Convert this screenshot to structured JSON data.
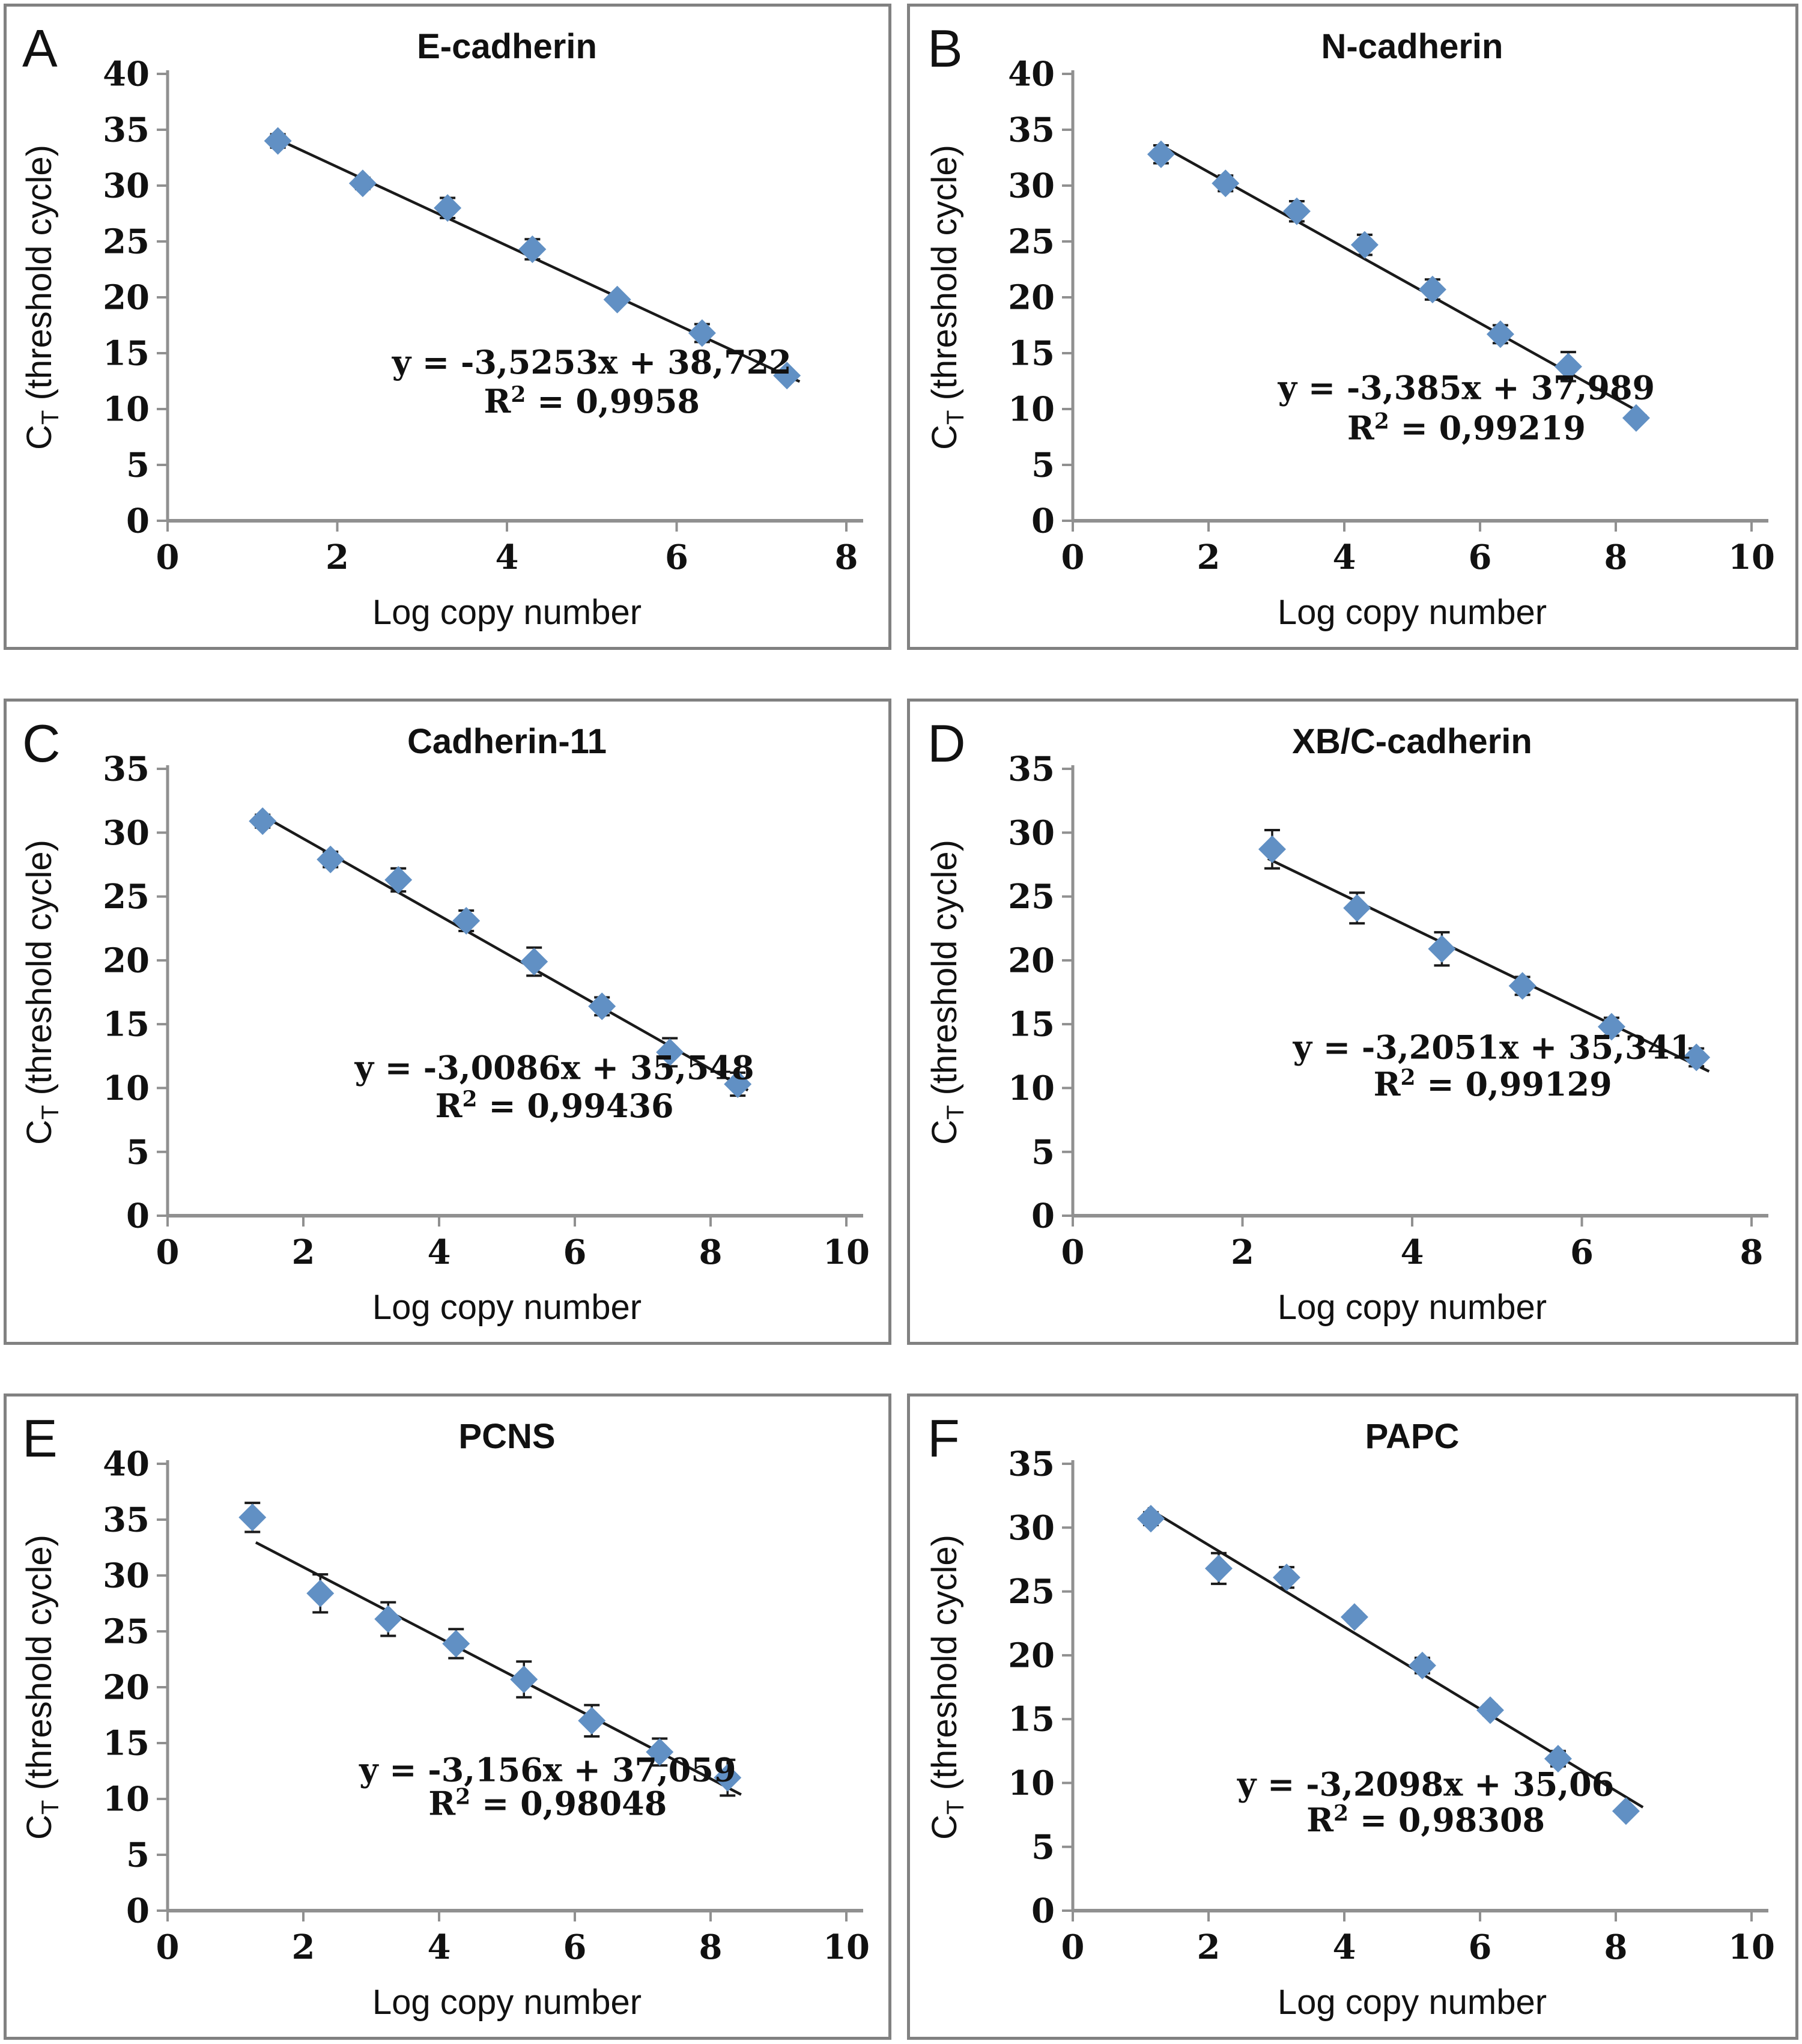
{
  "figure": {
    "description": "Six-panel qPCR standard curve figure",
    "panel_letters": [
      "A",
      "B",
      "C",
      "D",
      "E",
      "F"
    ]
  },
  "styles": {
    "marker_color": "#6190c4",
    "axis_color": "#909090",
    "text_color": "#111111",
    "trendline_color": "#1a1a1a",
    "errorbar_color": "#1a1a1a",
    "panel_border_color": "#818181",
    "background": "#ffffff"
  },
  "chart_data": [
    {
      "type": "scatter",
      "panel_letter": "A",
      "title": "E-cadherin",
      "xlabel": "Log copy number",
      "ylabel": {
        "base": "C",
        "sub": "T",
        "rest": " (threshold cycle)"
      },
      "xlim": [
        0,
        8
      ],
      "ylim": [
        0,
        40
      ],
      "xtick_step": 2,
      "ytick_step": 5,
      "equation": "y = -3,5253x + 38,722",
      "r_squared": "0,9958",
      "slope": -3.5253,
      "intercept": 38.722,
      "trendline_x": [
        1.3,
        7.45
      ],
      "equation_pos": {
        "x": 5.0,
        "y1": 14.2,
        "y2": 10.7
      },
      "points": [
        {
          "x": 1.3,
          "y": 34.0,
          "err": 0.6
        },
        {
          "x": 2.3,
          "y": 30.2,
          "err": 0.5
        },
        {
          "x": 3.3,
          "y": 28.0,
          "err": 0.9
        },
        {
          "x": 4.3,
          "y": 24.3,
          "err": 0.9
        },
        {
          "x": 5.3,
          "y": 19.8,
          "err": 0.4
        },
        {
          "x": 6.3,
          "y": 16.8,
          "err": 0.8
        },
        {
          "x": 7.3,
          "y": 13.0,
          "err": 0.3
        }
      ]
    },
    {
      "type": "scatter",
      "panel_letter": "B",
      "title": "N-cadherin",
      "xlabel": "Log copy number",
      "ylabel": {
        "base": "C",
        "sub": "T",
        "rest": " (threshold cycle)"
      },
      "xlim": [
        0,
        10
      ],
      "ylim": [
        0,
        40
      ],
      "xtick_step": 2,
      "ytick_step": 5,
      "equation": "y = -3,385x + 37,989",
      "r_squared": "0,99219",
      "slope": -3.385,
      "intercept": 37.989,
      "trendline_x": [
        1.3,
        8.45
      ],
      "equation_pos": {
        "x": 5.8,
        "y1": 11.9,
        "y2": 8.3
      },
      "points": [
        {
          "x": 1.3,
          "y": 32.8,
          "err": 0.8
        },
        {
          "x": 2.25,
          "y": 30.2,
          "err": 0.7
        },
        {
          "x": 3.3,
          "y": 27.7,
          "err": 0.9
        },
        {
          "x": 4.3,
          "y": 24.7,
          "err": 0.9
        },
        {
          "x": 5.3,
          "y": 20.7,
          "err": 0.9
        },
        {
          "x": 6.3,
          "y": 16.7,
          "err": 0.8
        },
        {
          "x": 7.3,
          "y": 13.8,
          "err": 1.3
        },
        {
          "x": 8.3,
          "y": 9.2,
          "err": 0.3
        }
      ]
    },
    {
      "type": "scatter",
      "panel_letter": "C",
      "title": "Cadherin-11",
      "xlabel": "Log copy number",
      "ylabel": {
        "base": "C",
        "sub": "T",
        "rest": " (threshold cycle)"
      },
      "xlim": [
        0,
        10
      ],
      "ylim": [
        0,
        35
      ],
      "xtick_step": 2,
      "ytick_step": 5,
      "equation": "y = -3,0086x + 35,548",
      "r_squared": "0,99436",
      "slope": -3.0086,
      "intercept": 35.548,
      "trendline_x": [
        1.4,
        8.55
      ],
      "equation_pos": {
        "x": 5.7,
        "y1": 11.6,
        "y2": 8.6
      },
      "points": [
        {
          "x": 1.4,
          "y": 30.9,
          "err": 0.5
        },
        {
          "x": 2.4,
          "y": 27.9,
          "err": 0.6
        },
        {
          "x": 3.4,
          "y": 26.3,
          "err": 0.9
        },
        {
          "x": 4.4,
          "y": 23.1,
          "err": 0.8
        },
        {
          "x": 5.4,
          "y": 19.9,
          "err": 1.1
        },
        {
          "x": 6.4,
          "y": 16.4,
          "err": 0.7
        },
        {
          "x": 7.4,
          "y": 12.8,
          "err": 1.1
        },
        {
          "x": 8.4,
          "y": 10.3,
          "err": 0.9
        }
      ]
    },
    {
      "type": "scatter",
      "panel_letter": "D",
      "title": "XB/C-cadherin",
      "xlabel": "Log copy number",
      "ylabel": {
        "base": "C",
        "sub": "T",
        "rest": " (threshold cycle)"
      },
      "xlim": [
        0,
        8
      ],
      "ylim": [
        0,
        35
      ],
      "xtick_step": 2,
      "ytick_step": 5,
      "equation": "y = -3,2051x + 35,341",
      "r_squared": "0,99129",
      "slope": -3.2051,
      "intercept": 35.341,
      "trendline_x": [
        2.3,
        7.5
      ],
      "equation_pos": {
        "x": 4.95,
        "y1": 13.2,
        "y2": 10.3
      },
      "points": [
        {
          "x": 2.35,
          "y": 28.7,
          "err": 1.5
        },
        {
          "x": 3.35,
          "y": 24.1,
          "err": 1.2
        },
        {
          "x": 4.35,
          "y": 20.9,
          "err": 1.3
        },
        {
          "x": 5.3,
          "y": 18.0,
          "err": 0.7
        },
        {
          "x": 6.35,
          "y": 14.8,
          "err": 0.7
        },
        {
          "x": 7.35,
          "y": 12.4,
          "err": 0.7
        }
      ]
    },
    {
      "type": "scatter",
      "panel_letter": "E",
      "title": "PCNS",
      "xlabel": "Log copy number",
      "ylabel": {
        "base": "C",
        "sub": "T",
        "rest": " (threshold cycle)"
      },
      "xlim": [
        0,
        10
      ],
      "ylim": [
        0,
        40
      ],
      "xtick_step": 2,
      "ytick_step": 5,
      "equation": "y = -3,156x + 37,059",
      "r_squared": "0,98048",
      "slope": -3.156,
      "intercept": 37.059,
      "trendline_x": [
        1.3,
        8.45
      ],
      "equation_pos": {
        "x": 5.6,
        "y1": 12.6,
        "y2": 9.6
      },
      "points": [
        {
          "x": 1.25,
          "y": 35.2,
          "err": 1.3
        },
        {
          "x": 2.25,
          "y": 28.4,
          "err": 1.7
        },
        {
          "x": 3.25,
          "y": 26.1,
          "err": 1.5
        },
        {
          "x": 4.25,
          "y": 23.9,
          "err": 1.3
        },
        {
          "x": 5.25,
          "y": 20.7,
          "err": 1.6
        },
        {
          "x": 6.25,
          "y": 17.0,
          "err": 1.4
        },
        {
          "x": 7.25,
          "y": 14.2,
          "err": 1.2
        },
        {
          "x": 8.25,
          "y": 11.9,
          "err": 1.6
        }
      ]
    },
    {
      "type": "scatter",
      "panel_letter": "F",
      "title": "PAPC",
      "xlabel": "Log copy number",
      "ylabel": {
        "base": "C",
        "sub": "T",
        "rest": " (threshold cycle)"
      },
      "xlim": [
        0,
        10
      ],
      "ylim": [
        0,
        35
      ],
      "xtick_step": 2,
      "ytick_step": 5,
      "equation": "y = -3,2098x + 35,06",
      "r_squared": "0,98308",
      "slope": -3.2098,
      "intercept": 35.06,
      "trendline_x": [
        1.1,
        8.4
      ],
      "equation_pos": {
        "x": 5.2,
        "y1": 9.9,
        "y2": 7.1
      },
      "points": [
        {
          "x": 1.15,
          "y": 30.7,
          "err": 0.5
        },
        {
          "x": 2.15,
          "y": 26.8,
          "err": 1.2
        },
        {
          "x": 3.15,
          "y": 26.1,
          "err": 0.8
        },
        {
          "x": 4.15,
          "y": 23.0,
          "err": 0.4
        },
        {
          "x": 5.15,
          "y": 19.2,
          "err": 0.6
        },
        {
          "x": 6.15,
          "y": 15.7,
          "err": 0.4
        },
        {
          "x": 7.15,
          "y": 11.9,
          "err": 0.6
        },
        {
          "x": 8.15,
          "y": 7.8,
          "err": 0.3
        }
      ]
    }
  ]
}
